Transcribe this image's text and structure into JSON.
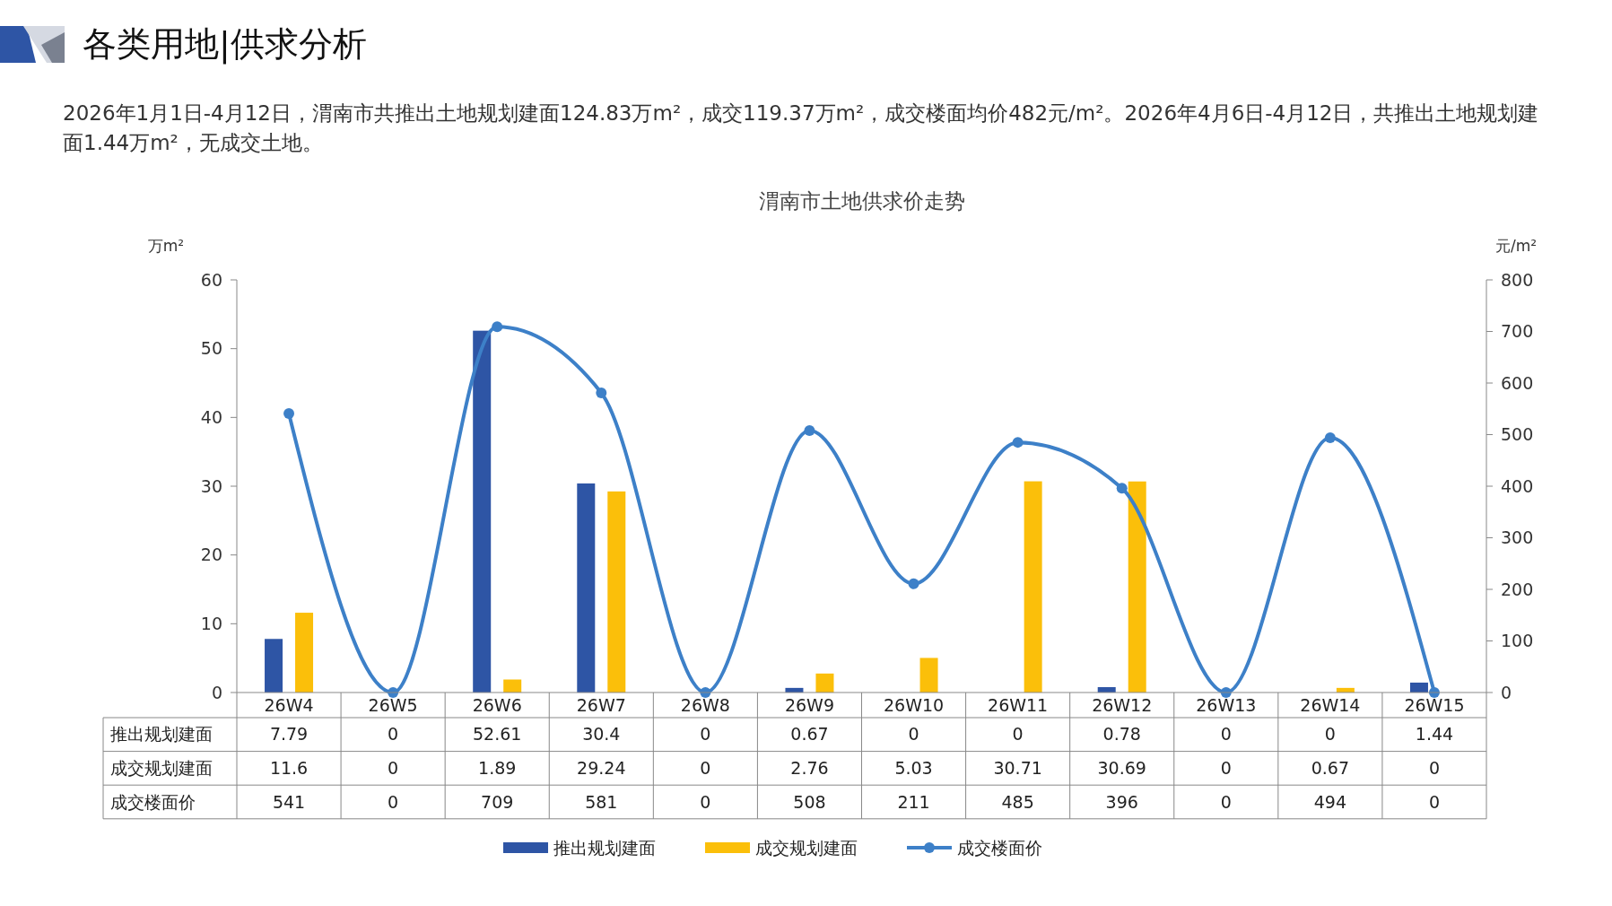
{
  "chart_data": {
    "type": "bar",
    "title": "渭南市土地供求价走势",
    "annotations": [
      "各类用地|供求分析",
      "2026年1月1日-4月12日，渭南市共推出土地规划建面124.83万m²，成交119.37万m²，成交楼面均价482元/m²。2026年4月6日-4月12日，共推出土地规划建面1.44万m²，无成交土地。"
    ],
    "ylabel": "万m²",
    "y2label": "元/m²",
    "categories": [
      "26W4",
      "26W5",
      "26W6",
      "26W7",
      "26W8",
      "26W9",
      "26W10",
      "26W11",
      "26W12",
      "26W13",
      "26W14",
      "26W15"
    ],
    "series": [
      {
        "name": "推出规划建面",
        "color": "#2e55a5",
        "values": [
          7.79,
          0,
          52.61,
          30.4,
          0,
          0.67,
          0,
          0,
          0.78,
          0,
          0,
          1.44
        ]
      },
      {
        "name": "成交规划建面",
        "color": "#fbbf0a",
        "values": [
          11.6,
          0,
          1.89,
          29.24,
          0,
          2.76,
          5.03,
          30.71,
          30.69,
          0,
          0.67,
          0
        ]
      },
      {
        "name": "成交楼面价",
        "type": "line",
        "axis": "y2",
        "color": "#3d80c8",
        "marker": "circle",
        "values": [
          541,
          0,
          709,
          581,
          0,
          508,
          211,
          485,
          396,
          0,
          494,
          0
        ]
      }
    ],
    "ylim": [
      0,
      60
    ],
    "yticks": [
      0,
      10,
      20,
      30,
      40,
      50,
      60
    ],
    "y2lim": [
      0,
      800
    ],
    "y2ticks": [
      0,
      100,
      200,
      300,
      400,
      500,
      600,
      700,
      800
    ],
    "data_labels": true,
    "legend": "bottom",
    "grid": false
  }
}
